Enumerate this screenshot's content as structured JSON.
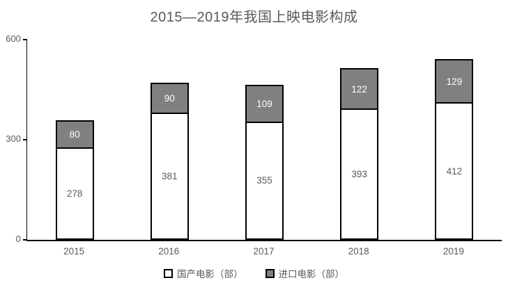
{
  "title": "2015—2019年我国上映电影构成",
  "colors": {
    "domestic_fill": "#ffffff",
    "import_fill": "#808080",
    "bar_border": "#000000",
    "axis": "#000000",
    "text_gray": "#595959",
    "import_value_text": "#ffffff",
    "background": "#ffffff"
  },
  "chart_data": {
    "type": "bar",
    "stacked": true,
    "title": "2015—2019年我国上映电影构成",
    "categories": [
      "2015",
      "2016",
      "2017",
      "2018",
      "2019"
    ],
    "series": [
      {
        "name": "国产电影（部）",
        "values": [
          278,
          381,
          355,
          393,
          412
        ],
        "fill": "#ffffff"
      },
      {
        "name": "进口电影（部）",
        "values": [
          80,
          90,
          109,
          122,
          129
        ],
        "fill": "#808080"
      }
    ],
    "totals": [
      358,
      471,
      464,
      515,
      541
    ],
    "xlabel": "",
    "ylabel": "",
    "ylim": [
      0,
      600
    ],
    "y_ticks": [
      0,
      300,
      600
    ],
    "grid": false,
    "legend_position": "bottom"
  },
  "legend": {
    "items": [
      {
        "label": "国产电影（部）",
        "swatch": "#ffffff"
      },
      {
        "label": "进口电影（部）",
        "swatch": "#808080"
      }
    ]
  }
}
